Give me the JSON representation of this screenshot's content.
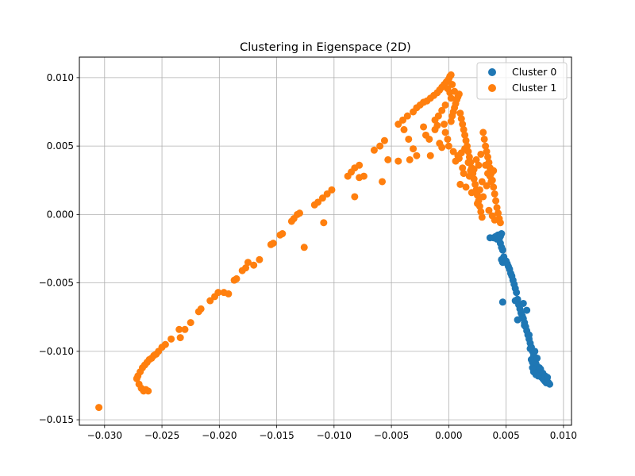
{
  "chart_data": {
    "type": "scatter",
    "title": "Clustering in Eigenspace (2D)",
    "xlabel": "",
    "ylabel": "",
    "xlim": [
      -0.0322,
      0.0107
    ],
    "ylim": [
      -0.0154,
      0.0115
    ],
    "x_ticks": [
      -0.03,
      -0.025,
      -0.02,
      -0.015,
      -0.01,
      -0.005,
      0.0,
      0.005,
      0.01
    ],
    "x_tick_labels": [
      "−0.030",
      "−0.025",
      "−0.020",
      "−0.015",
      "−0.010",
      "−0.005",
      "0.000",
      "0.005",
      "0.010"
    ],
    "y_ticks": [
      -0.015,
      -0.01,
      -0.005,
      0.0,
      0.005,
      0.01
    ],
    "y_tick_labels": [
      "−0.015",
      "−0.010",
      "−0.005",
      "0.000",
      "0.005",
      "0.010"
    ],
    "grid": true,
    "legend_position": "top-right",
    "series": [
      {
        "name": "Cluster 0",
        "color": "#1f77b4",
        "points": [
          [
            0.0036,
            -0.0017
          ],
          [
            0.0039,
            -0.0017
          ],
          [
            0.0041,
            -0.0016
          ],
          [
            0.0042,
            -0.0018
          ],
          [
            0.0043,
            -0.0015
          ],
          [
            0.0044,
            -0.0018
          ],
          [
            0.0045,
            -0.0016
          ],
          [
            0.0046,
            -0.0014
          ],
          [
            0.0045,
            -0.0021
          ],
          [
            0.0046,
            -0.0024
          ],
          [
            0.0047,
            -0.0026
          ],
          [
            0.0046,
            -0.0033
          ],
          [
            0.0047,
            -0.0035
          ],
          [
            0.0048,
            -0.0031
          ],
          [
            0.005,
            -0.0034
          ],
          [
            0.0051,
            -0.0036
          ],
          [
            0.0052,
            -0.0038
          ],
          [
            0.0053,
            -0.004
          ],
          [
            0.0054,
            -0.0043
          ],
          [
            0.0055,
            -0.0045
          ],
          [
            0.0056,
            -0.0048
          ],
          [
            0.0057,
            -0.0051
          ],
          [
            0.0058,
            -0.0054
          ],
          [
            0.0059,
            -0.0057
          ],
          [
            0.0058,
            -0.0063
          ],
          [
            0.006,
            -0.0062
          ],
          [
            0.0061,
            -0.0066
          ],
          [
            0.0062,
            -0.0069
          ],
          [
            0.0063,
            -0.0072
          ],
          [
            0.0064,
            -0.0074
          ],
          [
            0.0065,
            -0.0076
          ],
          [
            0.0066,
            -0.0079
          ],
          [
            0.0067,
            -0.0082
          ],
          [
            0.0068,
            -0.0085
          ],
          [
            0.0069,
            -0.0088
          ],
          [
            0.007,
            -0.0091
          ],
          [
            0.0071,
            -0.0094
          ],
          [
            0.0072,
            -0.0097
          ],
          [
            0.0073,
            -0.01
          ],
          [
            0.0074,
            -0.0103
          ],
          [
            0.0075,
            -0.0106
          ],
          [
            0.0076,
            -0.0109
          ],
          [
            0.0077,
            -0.0111
          ],
          [
            0.0078,
            -0.0114
          ],
          [
            0.0079,
            -0.0116
          ],
          [
            0.008,
            -0.0117
          ],
          [
            0.0081,
            -0.0119
          ],
          [
            0.0082,
            -0.012
          ],
          [
            0.0083,
            -0.0121
          ],
          [
            0.0084,
            -0.0122
          ],
          [
            0.0085,
            -0.0123
          ],
          [
            0.0086,
            -0.0122
          ],
          [
            0.0087,
            -0.0123
          ],
          [
            0.0088,
            -0.0124
          ],
          [
            0.0074,
            -0.0115
          ],
          [
            0.0076,
            -0.0117
          ],
          [
            0.0078,
            -0.0118
          ],
          [
            0.0073,
            -0.0112
          ],
          [
            0.0072,
            -0.0106
          ],
          [
            0.0074,
            -0.0104
          ],
          [
            0.0047,
            -0.0064
          ],
          [
            0.006,
            -0.0077
          ],
          [
            0.0065,
            -0.0065
          ],
          [
            0.0068,
            -0.007
          ],
          [
            0.0066,
            -0.0081
          ],
          [
            0.0071,
            -0.0098
          ],
          [
            0.0073,
            -0.0108
          ],
          [
            0.0075,
            -0.01
          ],
          [
            0.0077,
            -0.0105
          ],
          [
            0.0079,
            -0.0112
          ],
          [
            0.008,
            -0.0113
          ],
          [
            0.0082,
            -0.0116
          ],
          [
            0.0084,
            -0.0118
          ],
          [
            0.0086,
            -0.0119
          ],
          [
            0.007,
            -0.0088
          ]
        ]
      },
      {
        "name": "Cluster 1",
        "color": "#ff7f0e",
        "points": [
          [
            -0.0305,
            -0.0141
          ],
          [
            -0.0272,
            -0.012
          ],
          [
            -0.0271,
            -0.0118
          ],
          [
            -0.027,
            -0.0124
          ],
          [
            -0.0269,
            -0.0115
          ],
          [
            -0.0268,
            -0.0127
          ],
          [
            -0.0267,
            -0.0112
          ],
          [
            -0.0266,
            -0.0129
          ],
          [
            -0.0265,
            -0.011
          ],
          [
            -0.0264,
            -0.0128
          ],
          [
            -0.0263,
            -0.0108
          ],
          [
            -0.0262,
            -0.0129
          ],
          [
            -0.0261,
            -0.0106
          ],
          [
            -0.0259,
            -0.0105
          ],
          [
            -0.0257,
            -0.0103
          ],
          [
            -0.0255,
            -0.0102
          ],
          [
            -0.0253,
            -0.01
          ],
          [
            -0.025,
            -0.0097
          ],
          [
            -0.0247,
            -0.0095
          ],
          [
            -0.0242,
            -0.0091
          ],
          [
            -0.0235,
            -0.0084
          ],
          [
            -0.023,
            -0.0084
          ],
          [
            -0.0234,
            -0.009
          ],
          [
            -0.0225,
            -0.0079
          ],
          [
            -0.0218,
            -0.0071
          ],
          [
            -0.0216,
            -0.0069
          ],
          [
            -0.0208,
            -0.0063
          ],
          [
            -0.0204,
            -0.006
          ],
          [
            -0.0201,
            -0.0057
          ],
          [
            -0.0196,
            -0.0057
          ],
          [
            -0.0192,
            -0.0058
          ],
          [
            -0.0187,
            -0.0048
          ],
          [
            -0.0185,
            -0.0047
          ],
          [
            -0.018,
            -0.0041
          ],
          [
            -0.0177,
            -0.0039
          ],
          [
            -0.0175,
            -0.0035
          ],
          [
            -0.017,
            -0.0037
          ],
          [
            -0.0165,
            -0.0033
          ],
          [
            -0.0155,
            -0.0022
          ],
          [
            -0.0153,
            -0.0021
          ],
          [
            -0.0147,
            -0.0015
          ],
          [
            -0.0145,
            -0.0014
          ],
          [
            -0.0137,
            -0.0005
          ],
          [
            -0.0135,
            -0.0003
          ],
          [
            -0.0132,
            0.0
          ],
          [
            -0.013,
            0.0001
          ],
          [
            -0.0126,
            -0.0024
          ],
          [
            -0.0117,
            0.0007
          ],
          [
            -0.0114,
            0.0009
          ],
          [
            -0.011,
            0.0012
          ],
          [
            -0.0106,
            0.0015
          ],
          [
            -0.0102,
            0.0018
          ],
          [
            -0.0109,
            -0.0006
          ],
          [
            -0.0088,
            0.0028
          ],
          [
            -0.0085,
            0.0031
          ],
          [
            -0.0082,
            0.0034
          ],
          [
            -0.0078,
            0.0036
          ],
          [
            -0.0082,
            0.0013
          ],
          [
            -0.0078,
            0.0027
          ],
          [
            -0.0074,
            0.0028
          ],
          [
            -0.0065,
            0.0047
          ],
          [
            -0.006,
            0.005
          ],
          [
            -0.0056,
            0.0054
          ],
          [
            -0.0058,
            0.0024
          ],
          [
            -0.0053,
            0.004
          ],
          [
            -0.0044,
            0.0066
          ],
          [
            -0.004,
            0.0069
          ],
          [
            -0.0036,
            0.0072
          ],
          [
            -0.0031,
            0.0075
          ],
          [
            -0.0028,
            0.0078
          ],
          [
            -0.0025,
            0.008
          ],
          [
            -0.0022,
            0.0082
          ],
          [
            -0.0019,
            0.0083
          ],
          [
            -0.0016,
            0.0085
          ],
          [
            -0.0013,
            0.0087
          ],
          [
            -0.001,
            0.0089
          ],
          [
            -0.0008,
            0.0091
          ],
          [
            -0.0006,
            0.0093
          ],
          [
            -0.0004,
            0.0095
          ],
          [
            -0.0002,
            0.0097
          ],
          [
            0.0,
            0.0099
          ],
          [
            0.0001,
            0.0101
          ],
          [
            0.0002,
            0.0102
          ],
          [
            -0.0039,
            0.0062
          ],
          [
            -0.0035,
            0.0055
          ],
          [
            -0.0031,
            0.0048
          ],
          [
            -0.0028,
            0.0043
          ],
          [
            -0.0034,
            0.004
          ],
          [
            -0.0044,
            0.0039
          ],
          [
            -0.0016,
            0.0043
          ],
          [
            -0.0022,
            0.0064
          ],
          [
            -0.002,
            0.0058
          ],
          [
            -0.0017,
            0.0055
          ],
          [
            -0.0012,
            0.0062
          ],
          [
            -0.001,
            0.0065
          ],
          [
            -0.0008,
            0.0052
          ],
          [
            -0.0006,
            0.0049
          ],
          [
            -0.0004,
            0.0066
          ],
          [
            -0.0003,
            0.006
          ],
          [
            -0.0001,
            0.0055
          ],
          [
            0.0,
            0.005
          ],
          [
            0.0002,
            0.0068
          ],
          [
            0.0003,
            0.0072
          ],
          [
            0.0004,
            0.0075
          ],
          [
            0.0005,
            0.0078
          ],
          [
            0.0006,
            0.0081
          ],
          [
            0.0007,
            0.0084
          ],
          [
            0.0008,
            0.0086
          ],
          [
            0.0009,
            0.0088
          ],
          [
            0.001,
            0.0074
          ],
          [
            0.0011,
            0.007
          ],
          [
            0.0012,
            0.0066
          ],
          [
            0.0013,
            0.0062
          ],
          [
            0.0014,
            0.0058
          ],
          [
            0.0015,
            0.0054
          ],
          [
            0.0016,
            0.005
          ],
          [
            0.0017,
            0.0046
          ],
          [
            0.0018,
            0.0042
          ],
          [
            0.0019,
            0.0038
          ],
          [
            0.002,
            0.0034
          ],
          [
            0.0021,
            0.003
          ],
          [
            0.0022,
            0.0026
          ],
          [
            0.0023,
            0.0022
          ],
          [
            0.0024,
            0.0018
          ],
          [
            0.0025,
            0.0014
          ],
          [
            0.0026,
            0.001
          ],
          [
            0.0027,
            0.0006
          ],
          [
            0.0028,
            0.0002
          ],
          [
            0.0029,
            -0.0002
          ],
          [
            0.003,
            0.006
          ],
          [
            0.0031,
            0.0055
          ],
          [
            0.0032,
            0.005
          ],
          [
            0.0033,
            0.0046
          ],
          [
            0.0034,
            0.0042
          ],
          [
            0.0035,
            0.0038
          ],
          [
            0.0036,
            0.0034
          ],
          [
            0.0037,
            0.003
          ],
          [
            0.0038,
            0.0025
          ],
          [
            0.0039,
            0.002
          ],
          [
            0.004,
            0.0015
          ],
          [
            0.0041,
            0.001
          ],
          [
            0.0042,
            0.0005
          ],
          [
            0.0043,
            0.0001
          ],
          [
            0.0044,
            -0.0003
          ],
          [
            0.0045,
            -0.0006
          ],
          [
            0.004,
            -0.0004
          ],
          [
            0.0038,
            -0.0001
          ],
          [
            0.0035,
            0.0003
          ],
          [
            0.003,
            0.0013
          ],
          [
            0.0025,
            0.0008
          ],
          [
            0.002,
            0.0016
          ],
          [
            0.0015,
            0.002
          ],
          [
            0.001,
            0.0022
          ],
          [
            0.0013,
            0.003
          ],
          [
            0.0018,
            0.0028
          ],
          [
            0.0022,
            0.0033
          ],
          [
            0.0026,
            0.0036
          ],
          [
            0.0012,
            0.0034
          ],
          [
            0.0009,
            0.0041
          ],
          [
            0.0011,
            0.0045
          ],
          [
            0.0014,
            0.0048
          ],
          [
            0.0006,
            0.0039
          ],
          [
            0.0008,
            0.0043
          ],
          [
            0.0004,
            0.0046
          ],
          [
            0.0001,
            0.0089
          ],
          [
            -0.0001,
            0.0092
          ],
          [
            0.0003,
            0.0095
          ],
          [
            0.0005,
            0.009
          ],
          [
            0.0002,
            0.0085
          ],
          [
            -0.0003,
            0.008
          ],
          [
            -0.0006,
            0.0076
          ],
          [
            -0.0009,
            0.0072
          ],
          [
            -0.0012,
            0.0069
          ],
          [
            0.0019,
            0.0032
          ],
          [
            0.0017,
            0.0038
          ],
          [
            0.0024,
            0.004
          ],
          [
            0.0028,
            0.0044
          ],
          [
            0.0032,
            0.0036
          ],
          [
            0.0034,
            0.003
          ],
          [
            0.0036,
            0.0028
          ],
          [
            0.0039,
            0.0032
          ],
          [
            0.0037,
            0.0024
          ],
          [
            0.0033,
            0.0021
          ],
          [
            0.0029,
            0.0024
          ],
          [
            0.0027,
            0.0018
          ]
        ]
      }
    ]
  }
}
